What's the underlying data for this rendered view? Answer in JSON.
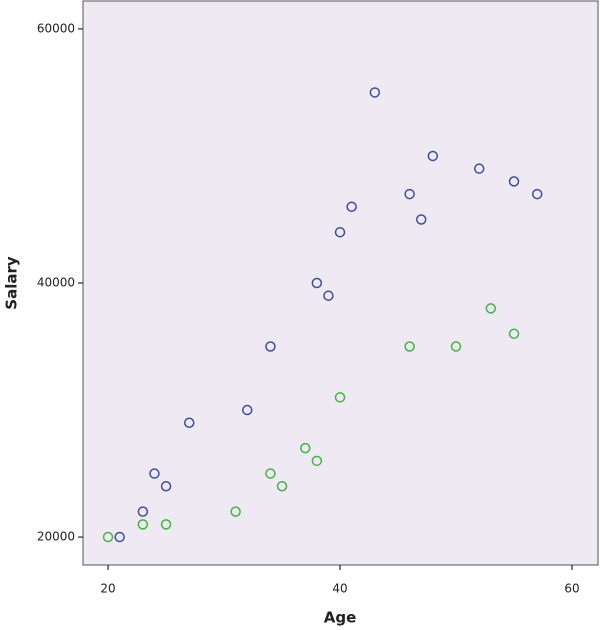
{
  "chart_data": {
    "type": "scatter",
    "x_label": "Age",
    "y_label": "Salary",
    "xlim": [
      17.84,
      62.24
    ],
    "ylim": [
      17800,
      62200
    ],
    "xticks": [
      20,
      40,
      60
    ],
    "yticks": [
      20000,
      40000,
      60000
    ],
    "background": "#efe9f3",
    "series": [
      {
        "color": "#3d4f9c",
        "x": [
          21,
          23,
          24,
          25,
          27,
          32,
          34,
          38,
          39,
          40,
          41,
          43,
          46,
          47,
          48,
          52,
          55,
          57
        ],
        "values": [
          20000,
          22000,
          25000,
          24000,
          29000,
          30000,
          35000,
          40000,
          39000,
          44000,
          46000,
          55000,
          47000,
          45000,
          50000,
          49000,
          48000,
          47000
        ]
      },
      {
        "color": "#3fb63f",
        "x": [
          20,
          23,
          25,
          31,
          34,
          35,
          37,
          38,
          40,
          46,
          50,
          53,
          55
        ],
        "values": [
          20000,
          21000,
          21000,
          22000,
          25000,
          24000,
          27000,
          26000,
          31000,
          35000,
          35000,
          38000,
          36000
        ]
      }
    ]
  }
}
